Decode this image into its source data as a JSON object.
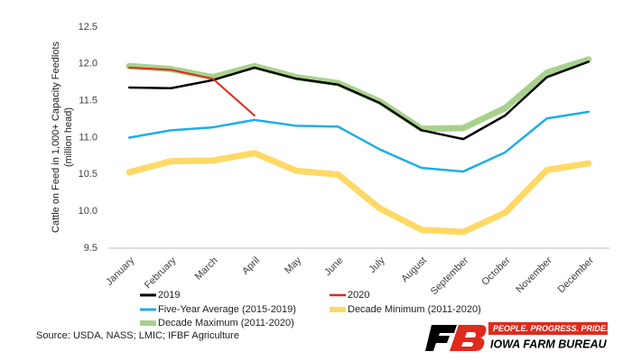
{
  "chart_data": {
    "type": "line",
    "ylabel": [
      "Cattle on Feed in 1,000+ Capacity Feedlots",
      "(million head)"
    ],
    "categories": [
      "January",
      "February",
      "March",
      "April",
      "May",
      "June",
      "July",
      "August",
      "September",
      "October",
      "November",
      "December"
    ],
    "series": [
      {
        "name": "2019",
        "color": "#000000",
        "values": [
          11.68,
          11.67,
          11.78,
          11.95,
          11.8,
          11.72,
          11.47,
          11.1,
          10.98,
          11.3,
          11.82,
          12.03
        ]
      },
      {
        "name": "2020",
        "color": "#e02a1c",
        "values": [
          11.95,
          11.92,
          11.8,
          11.3,
          null,
          null,
          null,
          null,
          null,
          null,
          null,
          null
        ]
      },
      {
        "name": "Five-Year Average (2015-2019)",
        "color": "#1eaee8",
        "values": [
          11.0,
          11.1,
          11.14,
          11.24,
          11.16,
          11.15,
          10.84,
          10.59,
          10.54,
          10.8,
          11.26,
          11.35
        ]
      },
      {
        "name": "Decade Maximum (2011-2020)",
        "color": "#a9d18e",
        "values": [
          11.97,
          11.93,
          11.82,
          11.97,
          11.82,
          11.74,
          11.49,
          11.12,
          11.13,
          11.4,
          11.88,
          12.06
        ]
      },
      {
        "name": "Decade Minimum (2011-2020)",
        "color": "#ffd966",
        "values": [
          10.53,
          10.68,
          10.69,
          10.79,
          10.55,
          10.5,
          10.04,
          9.75,
          9.72,
          9.98,
          10.56,
          10.65
        ]
      }
    ],
    "ylim": [
      9.5,
      12.5
    ],
    "yticks": [
      9.5,
      {
        "value": 10,
        "label": "10.0"
      },
      10.5,
      {
        "value": 11,
        "label": "11.0"
      },
      11.5,
      {
        "value": 12,
        "label": "12.0"
      },
      12.5
    ],
    "grid": false,
    "source": "Source: USDA, NASS; LMIC; IFBF Agriculture"
  },
  "logo": {
    "tagline": "PEOPLE. PROGRESS. PRIDE.®",
    "name": "IOWA FARM BUREAU"
  }
}
